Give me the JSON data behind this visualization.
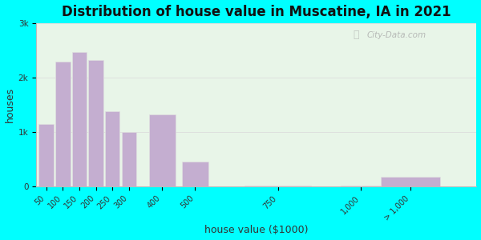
{
  "title": "Distribution of house value in Muscatine, IA in 2021",
  "xlabel": "house value ($1000)",
  "ylabel": "houses",
  "bar_categories": [
    "50",
    "100",
    "150",
    "200",
    "250",
    "300",
    "400",
    "500",
    "750",
    "1,000",
    "> 1,000"
  ],
  "bar_x_positions": [
    50,
    100,
    150,
    200,
    250,
    300,
    400,
    500,
    750,
    1000,
    1150
  ],
  "bar_widths": [
    45,
    45,
    45,
    45,
    45,
    45,
    80,
    80,
    200,
    120,
    180
  ],
  "bar_values": [
    1150,
    2300,
    2480,
    2320,
    1380,
    1000,
    1320,
    460,
    20,
    20,
    175
  ],
  "bar_color": "#c4aed0",
  "bar_edge_color": "#e0e0e0",
  "xlim": [
    20,
    1350
  ],
  "ylim": [
    0,
    3000
  ],
  "yticks": [
    0,
    1000,
    2000,
    3000
  ],
  "ytick_labels": [
    "0",
    "1k",
    "2k",
    "3k"
  ],
  "xtick_positions": [
    50,
    100,
    150,
    200,
    250,
    300,
    400,
    500,
    750,
    1000,
    1150
  ],
  "xtick_labels": [
    "50",
    "100",
    "150",
    "200",
    "250",
    "300",
    "400",
    "500",
    "750",
    "1,000",
    "> 1,000"
  ],
  "background_outer": "#00ffff",
  "background_plot": "#e8f5e8",
  "title_fontsize": 12,
  "axis_label_fontsize": 9,
  "watermark_text": "City-Data.com",
  "grid_color": "#dddddd"
}
